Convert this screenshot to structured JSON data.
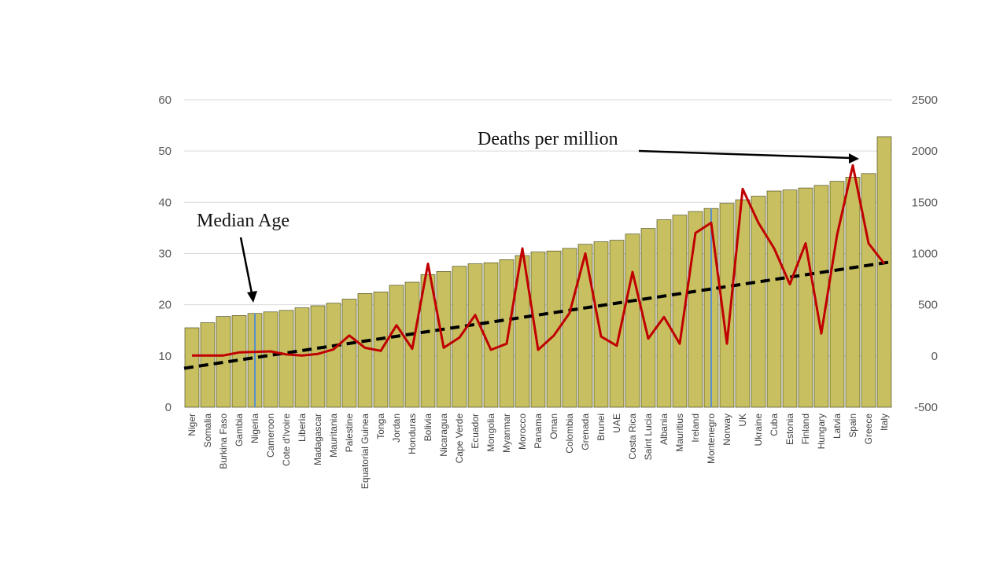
{
  "chart_data": {
    "type": "bar",
    "title": "",
    "xlabel": "",
    "ylabel": "",
    "y2label": "",
    "ylim": [
      0,
      60
    ],
    "y2lim": [
      -500,
      2500
    ],
    "yticks": [
      0,
      10,
      20,
      30,
      40,
      50,
      60
    ],
    "y2ticks": [
      -500,
      0,
      500,
      1000,
      1500,
      2000,
      2500
    ],
    "grid": true,
    "colors": {
      "bars": "#c8c060",
      "bar_edge": "#3a3a10",
      "line": "#c00000",
      "trend": "#000000",
      "grid": "#d9d9d9",
      "highlight": "#5b8fc9"
    },
    "categories": [
      "Niger",
      "Somalia",
      "Burkina Faso",
      "Gambia",
      "Nigeria",
      "Cameroon",
      "Cote d'Ivoire",
      "Liberia",
      "Madagascar",
      "Mauritania",
      "Palestine",
      "Equatorial Guinea",
      "Tonga",
      "Jordan",
      "Honduras",
      "Bolivia",
      "Nicaragua",
      "Cape Verde",
      "Ecuador",
      "Mongolia",
      "Myanmar",
      "Morocco",
      "Panama",
      "Oman",
      "Colombia",
      "Grenada",
      "Brunei",
      "UAE",
      "Costa Rica",
      "Saint Lucia",
      "Albania",
      "Mauritius",
      "Ireland",
      "Montenegro",
      "Norway",
      "UK",
      "Ukraine",
      "Cuba",
      "Estonia",
      "Finland",
      "Hungary",
      "Latvia",
      "Spain",
      "Greece",
      "Italy"
    ],
    "median_age": [
      15.5,
      16.5,
      17.7,
      17.9,
      18.3,
      18.6,
      18.9,
      19.4,
      19.8,
      20.3,
      21.1,
      22.2,
      22.5,
      23.8,
      24.4,
      25.9,
      26.5,
      27.5,
      28.0,
      28.2,
      28.8,
      29.6,
      30.3,
      30.5,
      31.0,
      31.8,
      32.3,
      32.6,
      33.8,
      34.9,
      36.6,
      37.5,
      38.2,
      38.8,
      39.8,
      40.5,
      41.2,
      42.2,
      42.4,
      42.8,
      43.3,
      44.1,
      44.9,
      45.6,
      52.8
    ],
    "deaths_per_million": [
      5,
      4,
      5,
      35,
      40,
      45,
      15,
      5,
      20,
      65,
      200,
      80,
      50,
      300,
      70,
      900,
      80,
      180,
      400,
      60,
      120,
      1050,
      60,
      200,
      420,
      1000,
      190,
      100,
      820,
      170,
      380,
      120,
      1200,
      1300,
      120,
      1630,
      1300,
      1050,
      700,
      1100,
      220,
      1180,
      1860,
      1100,
      900
    ],
    "trend": [
      -120,
      920
    ],
    "annotations": [
      "Deaths per million",
      "Median Age"
    ]
  }
}
